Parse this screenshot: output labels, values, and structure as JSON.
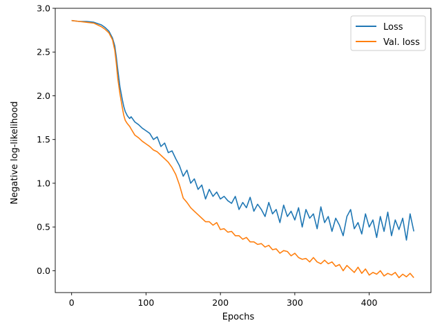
{
  "chart_data": {
    "type": "line",
    "title": "",
    "xlabel": "Epochs",
    "ylabel": "Negative log-likelihood",
    "xlim": [
      -22,
      483
    ],
    "ylim": [
      -0.25,
      3.0
    ],
    "xticks": [
      0,
      100,
      200,
      300,
      400
    ],
    "xtick_labels": [
      "0",
      "100",
      "200",
      "300",
      "400"
    ],
    "yticks": [
      0.0,
      0.5,
      1.0,
      1.5,
      2.0,
      2.5,
      3.0
    ],
    "ytick_labels": [
      "0.0",
      "0.5",
      "1.0",
      "1.5",
      "2.0",
      "2.5",
      "3.0"
    ],
    "grid": false,
    "legend_position": "top-right",
    "series": [
      {
        "name": "Loss",
        "color": "#1f77b4",
        "x": [
          0,
          10,
          20,
          30,
          40,
          45,
          50,
          55,
          58,
          60,
          62,
          65,
          68,
          70,
          72,
          75,
          78,
          80,
          85,
          90,
          95,
          100,
          105,
          110,
          115,
          120,
          125,
          130,
          135,
          140,
          145,
          150,
          155,
          160,
          165,
          170,
          175,
          180,
          185,
          190,
          195,
          200,
          205,
          210,
          215,
          220,
          225,
          230,
          235,
          240,
          245,
          250,
          255,
          260,
          265,
          270,
          275,
          280,
          285,
          290,
          295,
          300,
          305,
          310,
          315,
          320,
          325,
          330,
          335,
          340,
          345,
          350,
          355,
          360,
          365,
          370,
          375,
          380,
          385,
          390,
          395,
          400,
          405,
          410,
          415,
          420,
          425,
          430,
          435,
          440,
          445,
          450,
          455,
          460
        ],
        "y": [
          2.86,
          2.85,
          2.85,
          2.84,
          2.81,
          2.78,
          2.74,
          2.66,
          2.57,
          2.45,
          2.3,
          2.1,
          1.96,
          1.88,
          1.82,
          1.77,
          1.74,
          1.76,
          1.7,
          1.67,
          1.63,
          1.6,
          1.57,
          1.5,
          1.53,
          1.42,
          1.46,
          1.35,
          1.37,
          1.28,
          1.2,
          1.08,
          1.15,
          1.0,
          1.05,
          0.93,
          0.98,
          0.82,
          0.93,
          0.85,
          0.9,
          0.82,
          0.85,
          0.8,
          0.77,
          0.85,
          0.7,
          0.78,
          0.72,
          0.84,
          0.68,
          0.76,
          0.7,
          0.62,
          0.78,
          0.65,
          0.7,
          0.55,
          0.75,
          0.62,
          0.68,
          0.58,
          0.72,
          0.5,
          0.7,
          0.6,
          0.65,
          0.48,
          0.73,
          0.55,
          0.62,
          0.45,
          0.6,
          0.52,
          0.4,
          0.62,
          0.7,
          0.48,
          0.55,
          0.42,
          0.65,
          0.5,
          0.58,
          0.38,
          0.62,
          0.45,
          0.67,
          0.4,
          0.58,
          0.47,
          0.6,
          0.35,
          0.65,
          0.45
        ]
      },
      {
        "name": "Val. loss",
        "color": "#ff7f0e",
        "x": [
          0,
          10,
          20,
          30,
          40,
          45,
          50,
          55,
          58,
          60,
          62,
          65,
          68,
          70,
          72,
          75,
          78,
          80,
          85,
          90,
          95,
          100,
          105,
          110,
          115,
          120,
          125,
          130,
          135,
          140,
          145,
          150,
          155,
          160,
          165,
          170,
          175,
          180,
          185,
          190,
          195,
          200,
          205,
          210,
          215,
          220,
          225,
          230,
          235,
          240,
          245,
          250,
          255,
          260,
          265,
          270,
          275,
          280,
          285,
          290,
          295,
          300,
          305,
          310,
          315,
          320,
          325,
          330,
          335,
          340,
          345,
          350,
          355,
          360,
          365,
          370,
          375,
          380,
          385,
          390,
          395,
          400,
          405,
          410,
          415,
          420,
          425,
          430,
          435,
          440,
          445,
          450,
          455,
          460
        ],
        "y": [
          2.86,
          2.85,
          2.84,
          2.83,
          2.79,
          2.76,
          2.72,
          2.64,
          2.52,
          2.38,
          2.2,
          2.02,
          1.87,
          1.78,
          1.72,
          1.68,
          1.65,
          1.62,
          1.55,
          1.52,
          1.48,
          1.45,
          1.42,
          1.38,
          1.36,
          1.32,
          1.28,
          1.24,
          1.18,
          1.1,
          0.98,
          0.83,
          0.78,
          0.72,
          0.68,
          0.64,
          0.6,
          0.56,
          0.56,
          0.52,
          0.55,
          0.47,
          0.48,
          0.44,
          0.45,
          0.4,
          0.4,
          0.36,
          0.38,
          0.33,
          0.33,
          0.3,
          0.31,
          0.27,
          0.29,
          0.24,
          0.25,
          0.2,
          0.23,
          0.22,
          0.17,
          0.2,
          0.15,
          0.13,
          0.14,
          0.1,
          0.15,
          0.1,
          0.08,
          0.12,
          0.08,
          0.1,
          0.05,
          0.07,
          0.0,
          0.06,
          0.02,
          -0.02,
          0.04,
          -0.03,
          0.02,
          -0.05,
          -0.02,
          -0.04,
          0.0,
          -0.06,
          -0.03,
          -0.05,
          -0.02,
          -0.08,
          -0.04,
          -0.07,
          -0.03,
          -0.08
        ]
      }
    ]
  }
}
